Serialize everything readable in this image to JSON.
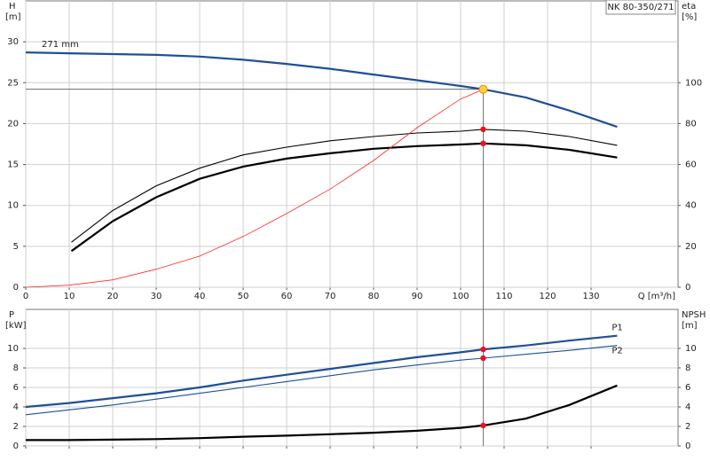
{
  "title": "NK 80-350/271",
  "chart_data": [
    {
      "type": "line",
      "y_label": "H",
      "y_unit": "[m]",
      "y2_label": "eta",
      "y2_unit": "[%]",
      "x_label": "Q [m³/h]",
      "xlim": [
        0,
        150
      ],
      "xticks": [
        0,
        10,
        20,
        30,
        40,
        50,
        60,
        70,
        80,
        90,
        100,
        110,
        120,
        130
      ],
      "ylim": [
        0,
        35
      ],
      "yticks": [
        0,
        5,
        10,
        15,
        20,
        25,
        30
      ],
      "y2lim": [
        0,
        140
      ],
      "y2ticks": [
        0,
        20,
        40,
        60,
        80,
        100
      ],
      "grid": true,
      "operating_q": 105.2,
      "series": [
        {
          "name": "271 mm",
          "color": "#1f4f96",
          "weight": "bold",
          "marker_color": "#ffd23c",
          "x": [
            0,
            10,
            20,
            30,
            40,
            50,
            60,
            70,
            80,
            90,
            100,
            105.2,
            115,
            125,
            136
          ],
          "values": [
            28.7,
            28.6,
            28.5,
            28.4,
            28.2,
            27.8,
            27.3,
            26.7,
            26.0,
            25.3,
            24.6,
            24.2,
            23.2,
            21.6,
            19.6
          ]
        },
        {
          "color": "#000000",
          "weight": "normal",
          "axis": "y2",
          "marker_color": "#e8141e",
          "x": [
            10.5,
            20,
            30,
            40,
            50,
            60,
            70,
            80,
            90,
            100,
            105.2,
            115,
            125,
            136
          ],
          "values": [
            22,
            37.5,
            49.6,
            58.2,
            64.7,
            68.5,
            71.6,
            73.7,
            75.4,
            76.3,
            77.2,
            76.3,
            73.7,
            69.4
          ]
        },
        {
          "color": "#000000",
          "weight": "bold",
          "axis": "y2",
          "marker_color": "#e8141e",
          "x": [
            10.5,
            20,
            30,
            40,
            50,
            60,
            70,
            80,
            90,
            100,
            105.2,
            115,
            125,
            136
          ],
          "values": [
            17.7,
            32.3,
            44,
            53,
            59,
            62.9,
            65.5,
            67.7,
            69,
            69.8,
            70.3,
            69.4,
            67.2,
            63.4
          ]
        },
        {
          "color": "#ff2a2a",
          "weight": "thin",
          "x": [
            0,
            10,
            20,
            30,
            40,
            50,
            60,
            70,
            80,
            90,
            100,
            105.2
          ],
          "values": [
            0,
            0.25,
            0.9,
            2.2,
            3.8,
            6.2,
            9,
            12,
            15.5,
            19.5,
            23,
            24.2
          ]
        }
      ]
    },
    {
      "type": "line",
      "y_label": "P",
      "y_unit": "[kW]",
      "y2_label": "NPSH",
      "y2_unit": "[m]",
      "xlim": [
        0,
        150
      ],
      "xticks": [
        0,
        10,
        20,
        30,
        40,
        50,
        60,
        70,
        80,
        90,
        100,
        110,
        120,
        130
      ],
      "ylim": [
        0,
        14
      ],
      "yticks": [
        0,
        2,
        4,
        6,
        8,
        10
      ],
      "y2lim": [
        0,
        14
      ],
      "y2ticks": [
        0,
        2,
        4,
        6,
        8,
        10
      ],
      "grid": true,
      "operating_q": 105.2,
      "series": [
        {
          "name": "P1",
          "color": "#1f4f96",
          "weight": "bold",
          "marker_color": "#e8141e",
          "x": [
            0,
            10,
            20,
            30,
            40,
            50,
            60,
            70,
            80,
            90,
            100,
            105.2,
            115,
            125,
            136
          ],
          "values": [
            4.0,
            4.4,
            4.9,
            5.4,
            6.0,
            6.7,
            7.3,
            7.9,
            8.5,
            9.1,
            9.6,
            9.9,
            10.3,
            10.8,
            11.3
          ]
        },
        {
          "name": "P2",
          "color": "#1f4f96",
          "weight": "normal",
          "marker_color": "#e8141e",
          "x": [
            0,
            10,
            20,
            30,
            40,
            50,
            60,
            70,
            80,
            90,
            100,
            105.2,
            115,
            125,
            136
          ],
          "values": [
            3.2,
            3.7,
            4.2,
            4.8,
            5.4,
            6.0,
            6.6,
            7.2,
            7.8,
            8.3,
            8.8,
            9.0,
            9.4,
            9.8,
            10.3
          ]
        },
        {
          "color": "#000000",
          "weight": "bold",
          "axis": "y2",
          "marker_color": "#e8141e",
          "x": [
            0,
            10,
            20,
            30,
            40,
            50,
            60,
            70,
            80,
            90,
            100,
            105.2,
            115,
            125,
            136
          ],
          "values": [
            0.6,
            0.6,
            0.65,
            0.7,
            0.8,
            0.95,
            1.05,
            1.2,
            1.35,
            1.55,
            1.85,
            2.1,
            2.8,
            4.2,
            6.2
          ]
        }
      ]
    }
  ]
}
